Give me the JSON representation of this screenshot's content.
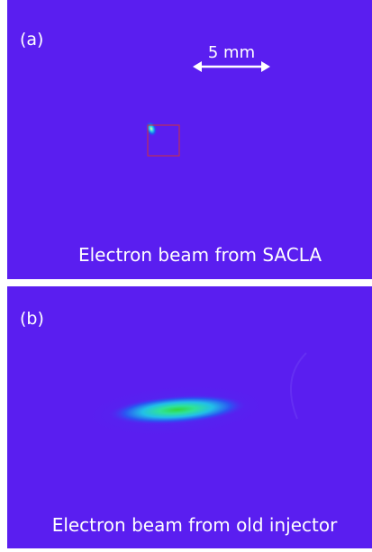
{
  "panels": [
    {
      "label": "(a)",
      "scale_bar": "5 mm",
      "caption": "Electron beam from SACLA"
    },
    {
      "label": "(b)",
      "caption": "Electron beam from old injector"
    }
  ]
}
